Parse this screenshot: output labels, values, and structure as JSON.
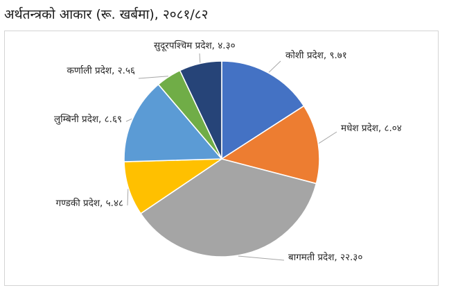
{
  "title": "अर्थतन्त्रको आकार (रू. खर्बमा), २०८१/८२",
  "chart_data": {
    "type": "pie",
    "title": "अर्थतन्त्रको आकार (रू. खर्बमा), २०८१/८२",
    "start_angle_deg": 0,
    "direction": "clockwise",
    "legend": "none",
    "slices": [
      {
        "name": "कोशी प्रदेश",
        "value": 9.71,
        "value_label": "९.७१",
        "label": "कोशी प्रदेश, ९.७१",
        "color": "#4472C4"
      },
      {
        "name": "मधेश प्रदेश",
        "value": 8.04,
        "value_label": "८.०४",
        "label": "मधेश प्रदेश, ८.०४",
        "color": "#ED7D31"
      },
      {
        "name": "बागमती प्रदेश",
        "value": 22.3,
        "value_label": "२२.३०",
        "label": "बागमती प्रदेश, २२.३०",
        "color": "#A5A5A5"
      },
      {
        "name": "गण्डकी प्रदेश",
        "value": 5.48,
        "value_label": "५.४८",
        "label": "गण्डकी प्रदेश, ५.४८",
        "color": "#FFC000"
      },
      {
        "name": "लुम्बिनी प्रदेश",
        "value": 8.69,
        "value_label": "८.६९",
        "label": "लुम्बिनी प्रदेश, ८.६९",
        "color": "#5B9BD5"
      },
      {
        "name": "कर्णाली प्रदेश",
        "value": 2.56,
        "value_label": "२.५६",
        "label": "कर्णाली प्रदेश, २.५६",
        "color": "#70AD47"
      },
      {
        "name": "सुदूरपश्चिम प्रदेश",
        "value": 4.3,
        "value_label": "४.३०",
        "label": "सुदूरपश्चिम प्रदेश, ४.३०",
        "color": "#264478"
      }
    ]
  }
}
